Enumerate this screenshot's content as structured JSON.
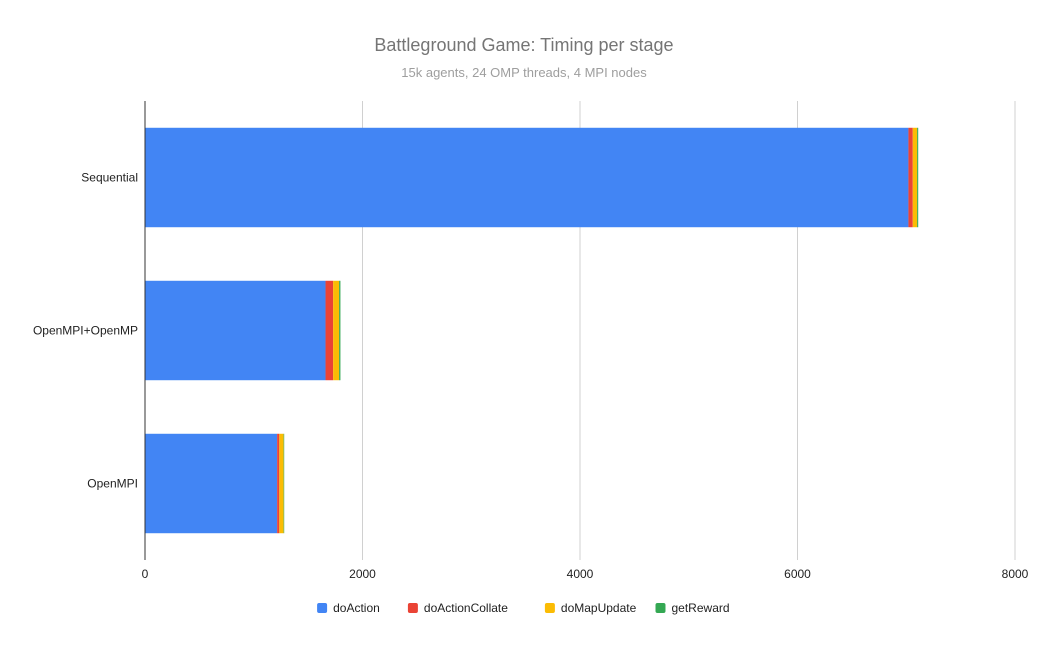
{
  "chart_data": {
    "type": "bar",
    "orientation": "horizontal",
    "stacked": true,
    "title": "Battleground Game: Timing per stage",
    "subtitle": "15k agents, 24 OMP threads, 4 MPI nodes",
    "xlabel": "",
    "ylabel": "",
    "xlim": [
      0,
      8000
    ],
    "xticks": [
      0,
      2000,
      4000,
      6000,
      8000
    ],
    "grid": true,
    "legend_position": "bottom",
    "categories": [
      "Sequential",
      "OpenMPI+OpenMP",
      "OpenMPI"
    ],
    "series": [
      {
        "name": "doAction",
        "color": "#4285F4",
        "values": [
          7020,
          1660,
          1215
        ]
      },
      {
        "name": "doActionCollate",
        "color": "#EA4335",
        "values": [
          40,
          70,
          20
        ]
      },
      {
        "name": "doMapUpdate",
        "color": "#FBBC04",
        "values": [
          40,
          55,
          40
        ]
      },
      {
        "name": "getReward",
        "color": "#34A853",
        "values": [
          10,
          12,
          5
        ]
      }
    ]
  }
}
